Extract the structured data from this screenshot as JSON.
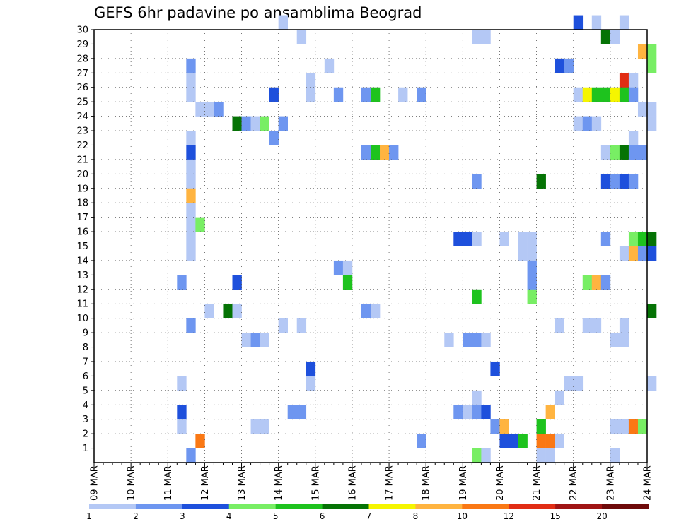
{
  "chart_data": {
    "type": "heatmap",
    "title": "GEFS 6hr padavine po ansamblima Beograd",
    "xlabel": "",
    "ylabel": "",
    "x_tick_labels": [
      "09 MAR",
      "10 MAR",
      "11 MAR",
      "12 MAR",
      "13 MAR",
      "14 MAR",
      "15 MAR",
      "16 MAR",
      "17 MAR",
      "18 MAR",
      "19 MAR",
      "20 MAR",
      "21 MAR",
      "22 MAR",
      "23 MAR",
      "24 MAR"
    ],
    "y_tick_labels": [
      "1",
      "2",
      "3",
      "4",
      "5",
      "6",
      "7",
      "8",
      "9",
      "10",
      "11",
      "12",
      "13",
      "14",
      "15",
      "16",
      "17",
      "18",
      "19",
      "20",
      "21",
      "22",
      "23",
      "24",
      "25",
      "26",
      "27",
      "28",
      "29",
      "30"
    ],
    "xlim_day": [
      9,
      24
    ],
    "ylim": [
      0,
      30
    ],
    "grid": true,
    "legend_position": "bottom",
    "legend": {
      "labels": [
        "1",
        "2",
        "3",
        "4",
        "5",
        "6",
        "7",
        "8",
        "10",
        "12",
        "15",
        "20"
      ],
      "colors": [
        "#b4c8f5",
        "#6e96f0",
        "#1e50dc",
        "#78ee64",
        "#1ec31e",
        "#057305",
        "#f5f500",
        "#ffb440",
        "#fa7814",
        "#e12d14",
        "#a01414",
        "#6e0a0a"
      ]
    },
    "cells": [
      [
        30,
        14.0,
        0
      ],
      [
        30,
        22.0,
        2
      ],
      [
        30,
        22.5,
        0
      ],
      [
        30,
        23.25,
        0
      ],
      [
        29,
        14.5,
        0
      ],
      [
        29,
        19.25,
        0
      ],
      [
        29,
        19.5,
        0
      ],
      [
        29,
        22.75,
        5
      ],
      [
        29,
        23.0,
        0
      ],
      [
        28,
        23.75,
        7
      ],
      [
        28,
        24.0,
        3
      ],
      [
        27,
        11.5,
        1
      ],
      [
        27,
        15.25,
        0
      ],
      [
        27,
        21.5,
        2
      ],
      [
        27,
        21.75,
        1
      ],
      [
        27,
        24.0,
        3
      ],
      [
        26,
        11.5,
        0
      ],
      [
        26,
        14.75,
        0
      ],
      [
        26,
        23.25,
        9
      ],
      [
        26,
        23.5,
        0
      ],
      [
        25,
        11.5,
        0
      ],
      [
        25,
        14.75,
        0
      ],
      [
        25,
        13.75,
        2
      ],
      [
        25,
        15.5,
        1
      ],
      [
        25,
        16.25,
        1
      ],
      [
        25,
        16.5,
        4
      ],
      [
        25,
        17.25,
        0
      ],
      [
        25,
        17.75,
        1
      ],
      [
        25,
        22.0,
        0
      ],
      [
        25,
        22.25,
        6
      ],
      [
        25,
        22.5,
        4
      ],
      [
        25,
        22.75,
        4
      ],
      [
        25,
        23.0,
        6
      ],
      [
        25,
        23.25,
        4
      ],
      [
        25,
        23.5,
        1
      ],
      [
        24,
        11.75,
        0
      ],
      [
        24,
        12.0,
        0
      ],
      [
        24,
        12.25,
        1
      ],
      [
        24,
        23.75,
        0
      ],
      [
        24,
        24.0,
        0
      ],
      [
        23,
        12.75,
        5
      ],
      [
        23,
        13.0,
        1
      ],
      [
        23,
        13.25,
        0
      ],
      [
        23,
        13.5,
        3
      ],
      [
        23,
        14.0,
        1
      ],
      [
        23,
        22.0,
        0
      ],
      [
        23,
        22.25,
        1
      ],
      [
        23,
        22.5,
        0
      ],
      [
        23,
        24.0,
        0
      ],
      [
        22,
        11.5,
        0
      ],
      [
        22,
        13.75,
        1
      ],
      [
        22,
        23.5,
        0
      ],
      [
        21,
        11.5,
        2
      ],
      [
        21,
        16.25,
        1
      ],
      [
        21,
        16.5,
        4
      ],
      [
        21,
        16.75,
        7
      ],
      [
        21,
        17.0,
        1
      ],
      [
        21,
        22.75,
        0
      ],
      [
        21,
        23.0,
        3
      ],
      [
        21,
        23.25,
        5
      ],
      [
        21,
        23.5,
        1
      ],
      [
        21,
        23.75,
        1
      ],
      [
        20,
        11.5,
        0
      ],
      [
        19,
        11.5,
        0
      ],
      [
        19,
        19.25,
        1
      ],
      [
        19,
        21.0,
        5
      ],
      [
        19,
        22.75,
        2
      ],
      [
        19,
        23.0,
        1
      ],
      [
        19,
        23.25,
        2
      ],
      [
        19,
        23.5,
        1
      ],
      [
        18,
        11.5,
        7
      ],
      [
        17,
        11.5,
        0
      ],
      [
        16,
        11.5,
        0
      ],
      [
        16,
        11.75,
        3
      ],
      [
        15,
        11.5,
        0
      ],
      [
        15,
        18.75,
        2
      ],
      [
        15,
        19.0,
        2
      ],
      [
        15,
        19.25,
        0
      ],
      [
        15,
        20.0,
        0
      ],
      [
        15,
        20.5,
        0
      ],
      [
        15,
        20.75,
        0
      ],
      [
        15,
        22.75,
        1
      ],
      [
        15,
        23.5,
        3
      ],
      [
        15,
        23.75,
        4
      ],
      [
        15,
        24.0,
        5
      ],
      [
        14,
        11.5,
        0
      ],
      [
        14,
        20.5,
        0
      ],
      [
        14,
        20.75,
        0
      ],
      [
        14,
        23.25,
        0
      ],
      [
        14,
        23.5,
        7
      ],
      [
        14,
        23.75,
        1
      ],
      [
        14,
        24.0,
        2
      ],
      [
        13,
        15.5,
        1
      ],
      [
        13,
        15.75,
        0
      ],
      [
        13,
        20.75,
        1
      ],
      [
        12,
        11.25,
        1
      ],
      [
        12,
        12.75,
        2
      ],
      [
        12,
        15.75,
        4
      ],
      [
        12,
        20.75,
        1
      ],
      [
        12,
        22.25,
        3
      ],
      [
        12,
        22.5,
        7
      ],
      [
        12,
        22.75,
        1
      ],
      [
        11,
        19.25,
        4
      ],
      [
        11,
        20.75,
        3
      ],
      [
        10,
        12.0,
        0
      ],
      [
        10,
        12.5,
        5
      ],
      [
        10,
        12.75,
        0
      ],
      [
        10,
        16.25,
        1
      ],
      [
        10,
        16.5,
        0
      ],
      [
        10,
        24.0,
        5
      ],
      [
        9,
        11.5,
        1
      ],
      [
        9,
        14.0,
        0
      ],
      [
        9,
        14.5,
        0
      ],
      [
        9,
        21.5,
        0
      ],
      [
        9,
        22.25,
        0
      ],
      [
        9,
        22.5,
        0
      ],
      [
        9,
        23.25,
        0
      ],
      [
        8,
        13.0,
        0
      ],
      [
        8,
        13.25,
        1
      ],
      [
        8,
        13.5,
        0
      ],
      [
        8,
        18.5,
        0
      ],
      [
        8,
        19.0,
        1
      ],
      [
        8,
        19.25,
        1
      ],
      [
        8,
        19.5,
        0
      ],
      [
        8,
        23.0,
        0
      ],
      [
        8,
        23.25,
        0
      ],
      [
        6,
        14.75,
        2
      ],
      [
        6,
        19.75,
        2
      ],
      [
        5,
        11.25,
        0
      ],
      [
        5,
        14.75,
        0
      ],
      [
        5,
        21.75,
        0
      ],
      [
        5,
        22.0,
        0
      ],
      [
        5,
        24.0,
        0
      ],
      [
        4,
        19.25,
        0
      ],
      [
        4,
        21.5,
        0
      ],
      [
        3,
        11.25,
        2
      ],
      [
        3,
        14.25,
        1
      ],
      [
        3,
        14.5,
        1
      ],
      [
        3,
        18.75,
        1
      ],
      [
        3,
        19.0,
        0
      ],
      [
        3,
        19.25,
        1
      ],
      [
        3,
        19.5,
        2
      ],
      [
        3,
        21.25,
        7
      ],
      [
        2,
        11.25,
        0
      ],
      [
        2,
        13.25,
        0
      ],
      [
        2,
        13.5,
        0
      ],
      [
        2,
        19.75,
        1
      ],
      [
        2,
        20.0,
        7
      ],
      [
        2,
        21.0,
        4
      ],
      [
        2,
        23.0,
        0
      ],
      [
        2,
        23.25,
        0
      ],
      [
        2,
        23.5,
        8
      ],
      [
        2,
        23.75,
        3
      ],
      [
        1,
        11.75,
        8
      ],
      [
        1,
        17.75,
        1
      ],
      [
        1,
        20.0,
        2
      ],
      [
        1,
        20.25,
        2
      ],
      [
        1,
        20.5,
        4
      ],
      [
        1,
        21.0,
        8
      ],
      [
        1,
        21.25,
        8
      ],
      [
        1,
        21.5,
        0
      ],
      [
        0,
        11.5,
        1
      ],
      [
        0,
        19.25,
        3
      ],
      [
        0,
        19.5,
        0
      ],
      [
        0,
        21.0,
        0
      ],
      [
        0,
        21.25,
        0
      ],
      [
        0,
        23.0,
        0
      ]
    ]
  }
}
